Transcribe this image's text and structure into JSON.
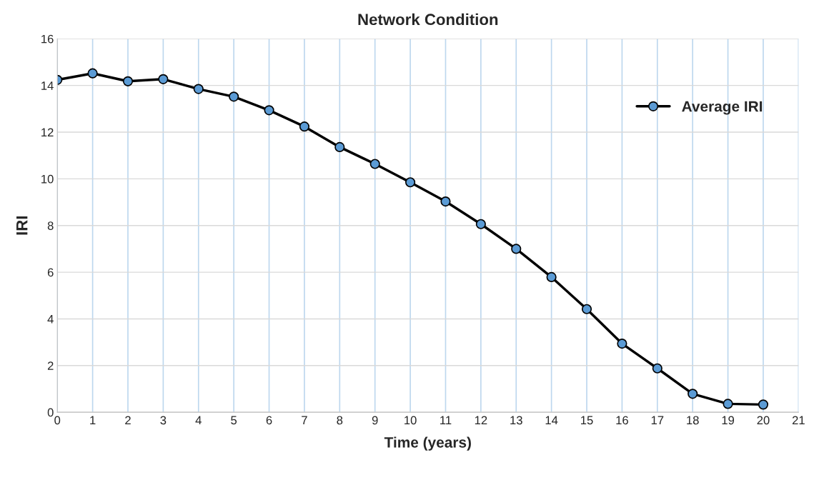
{
  "chart_data": {
    "type": "line",
    "title": "Network Condition",
    "xlabel": "Time (years)",
    "ylabel": "IRI",
    "x": [
      0,
      1,
      2,
      3,
      4,
      5,
      6,
      7,
      8,
      9,
      10,
      11,
      12,
      13,
      14,
      15,
      16,
      17,
      18,
      19,
      20
    ],
    "series": [
      {
        "name": "Average IRI",
        "color": "#5b9bd5",
        "values": [
          14.24,
          14.52,
          14.18,
          14.27,
          13.85,
          13.52,
          12.94,
          12.24,
          11.36,
          10.64,
          9.85,
          9.03,
          8.06,
          7.0,
          5.79,
          4.42,
          2.94,
          1.88,
          0.79,
          0.36,
          0.33
        ]
      }
    ],
    "xlim": [
      0,
      21
    ],
    "xticks": [
      0,
      1,
      2,
      3,
      4,
      5,
      6,
      7,
      8,
      9,
      10,
      11,
      12,
      13,
      14,
      15,
      16,
      17,
      18,
      19,
      20,
      21
    ],
    "ylim": [
      0,
      16
    ],
    "yticks": [
      0,
      2,
      4,
      6,
      8,
      10,
      12,
      14,
      16
    ],
    "grid": true,
    "legend": "top right",
    "marker": "circle",
    "line_style": "solid"
  }
}
